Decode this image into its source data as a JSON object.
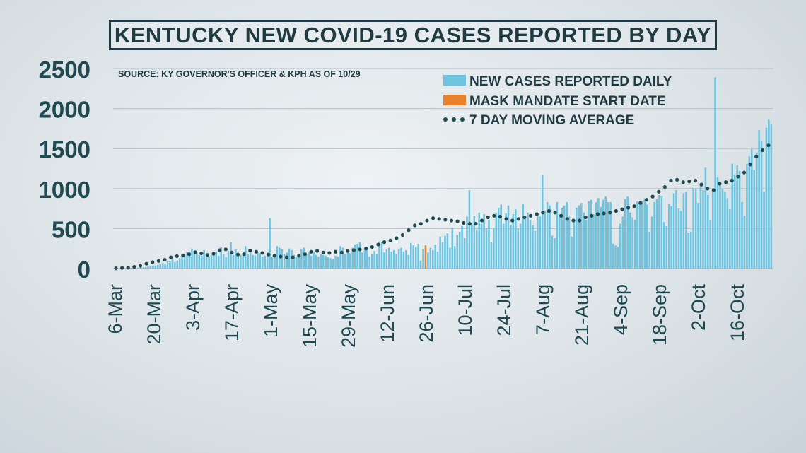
{
  "title": "KENTUCKY NEW COVID-19 CASES REPORTED BY DAY",
  "chart_data": {
    "type": "bar",
    "title": "KENTUCKY NEW COVID-19 CASES REPORTED BY DAY",
    "source": "SOURCE: KY GOVERNOR'S OFFICER & KPH AS OF 10/29",
    "xlabel": "",
    "ylabel": "",
    "ylim": [
      0,
      2500
    ],
    "yticks": [
      0,
      500,
      1000,
      1500,
      2000,
      2500
    ],
    "xtick_labels": [
      "6-Mar",
      "20-Mar",
      "3-Apr",
      "17-Apr",
      "1-May",
      "15-May",
      "29-May",
      "12-Jun",
      "26-Jun",
      "10-Jul",
      "24-Jul",
      "7-Aug",
      "21-Aug",
      "4-Sep",
      "18-Sep",
      "2-Oct",
      "16-Oct"
    ],
    "grid": true,
    "legend_position": "top-right",
    "legend": [
      {
        "label": "NEW CASES REPORTED DAILY",
        "color": "#6ec3de",
        "kind": "bar"
      },
      {
        "label": "MASK MANDATE START DATE",
        "color": "#e8812b",
        "kind": "bar"
      },
      {
        "label": "7 DAY MOVING AVERAGE",
        "color": "#1f4a4f",
        "kind": "dots"
      }
    ],
    "series": [
      {
        "name": "NEW CASES REPORTED DAILY",
        "values": [
          0,
          1,
          2,
          3,
          3,
          5,
          6,
          8,
          9,
          10,
          11,
          14,
          15,
          17,
          25,
          30,
          35,
          40,
          45,
          55,
          70,
          60,
          90,
          95,
          120,
          80,
          100,
          130,
          150,
          160,
          210,
          180,
          250,
          220,
          200,
          170,
          160,
          230,
          190,
          150,
          170,
          200,
          210,
          160,
          270,
          180,
          140,
          220,
          330,
          170,
          240,
          200,
          170,
          190,
          280,
          180,
          210,
          170,
          160,
          210,
          190,
          150,
          160,
          200,
          630,
          150,
          170,
          280,
          260,
          240,
          180,
          200,
          250,
          230,
          170,
          150,
          180,
          240,
          260,
          180,
          200,
          160,
          210,
          170,
          150,
          180,
          170,
          160,
          140,
          130,
          120,
          160,
          150,
          280,
          260,
          180,
          210,
          190,
          260,
          300,
          310,
          330,
          200,
          240,
          270,
          150,
          180,
          220,
          180,
          340,
          330,
          200,
          240,
          260,
          210,
          230,
          180,
          240,
          260,
          210,
          230,
          170,
          320,
          290,
          270,
          310,
          100,
          240,
          290,
          200,
          260,
          230,
          300,
          210,
          400,
          330,
          410,
          440,
          260,
          510,
          280,
          420,
          460,
          530,
          380,
          650,
          980,
          550,
          660,
          490,
          700,
          560,
          680,
          500,
          600,
          330,
          510,
          700,
          760,
          800,
          560,
          690,
          790,
          550,
          680,
          740,
          500,
          560,
          810,
          620,
          700,
          600,
          540,
          470,
          690,
          650,
          1170,
          720,
          830,
          790,
          410,
          380,
          830,
          680,
          760,
          790,
          830,
          650,
          400,
          580,
          760,
          790,
          820,
          700,
          600,
          840,
          860,
          680,
          830,
          880,
          770,
          860,
          900,
          830,
          830,
          310,
          290,
          270,
          560,
          650,
          870,
          900,
          700,
          640,
          610,
          840,
          800,
          840,
          880,
          800,
          460,
          650,
          830,
          870,
          920,
          910,
          580,
          530,
          810,
          780,
          940,
          980,
          750,
          720,
          940,
          960,
          450,
          460,
          1010,
          1000,
          820,
          1060,
          980,
          1260,
          920,
          600,
          990,
          2390,
          1140,
          1070,
          1000,
          960,
          880,
          740,
          1310,
          1170,
          1290,
          1220,
          830,
          660,
          1310,
          1400,
          1490,
          1230,
          1450,
          1730,
          1590,
          960,
          1760,
          1860,
          1800
        ]
      },
      {
        "name": "7 DAY MOVING AVERAGE",
        "values": [
          3,
          8,
          12,
          22,
          35,
          60,
          80,
          95,
          110,
          140,
          155,
          165,
          180,
          205,
          190,
          170,
          185,
          230,
          240,
          200,
          175,
          180,
          225,
          210,
          195,
          175,
          160,
          150,
          140,
          140,
          160,
          180,
          210,
          220,
          200,
          195,
          210,
          200,
          220,
          230,
          240,
          250,
          270,
          300,
          330,
          350,
          380,
          420,
          480,
          540,
          560,
          600,
          630,
          620,
          610,
          600,
          590,
          570,
          560,
          560,
          600,
          640,
          660,
          650,
          620,
          600,
          620,
          640,
          660,
          680,
          700,
          720,
          700,
          660,
          620,
          600,
          600,
          640,
          660,
          680,
          690,
          700,
          720,
          740,
          760,
          780,
          820,
          860,
          900,
          960,
          1020,
          1100,
          1110,
          1080,
          1090,
          1100,
          1050,
          1000,
          980,
          1060,
          1080,
          1100,
          1150,
          1200,
          1300,
          1400,
          1480,
          1540
        ]
      }
    ],
    "mask_mandate_index": 128
  }
}
